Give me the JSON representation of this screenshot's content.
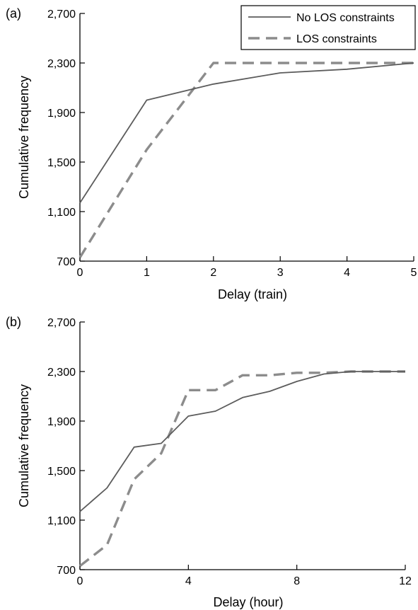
{
  "chart_data": [
    {
      "type": "line",
      "panel_label": "(a)",
      "xlabel": "Delay (train)",
      "ylabel": "Cumulative frequency",
      "xlim": [
        0,
        5
      ],
      "ylim": [
        700,
        2700
      ],
      "xticks": [
        0,
        1,
        2,
        3,
        4,
        5
      ],
      "xtick_labels": [
        "0",
        "1",
        "2",
        "3",
        "4",
        "5"
      ],
      "yticks": [
        700,
        1100,
        1500,
        1900,
        2300,
        2700
      ],
      "ytick_labels": [
        "700",
        "1,100",
        "1,500",
        "1,900",
        "2,300",
        "2,700"
      ],
      "grid": false,
      "legend": "top-right",
      "series": [
        {
          "name": "No LOS constraints",
          "style": "solid",
          "color": "#5c5c5c",
          "x": [
            0,
            1,
            2,
            3,
            4,
            5
          ],
          "y": [
            1170,
            2000,
            2130,
            2220,
            2250,
            2300
          ]
        },
        {
          "name": "LOS constraints",
          "style": "dashed",
          "color": "#8c8c8c",
          "x": [
            0,
            1,
            2,
            3,
            4,
            5
          ],
          "y": [
            730,
            1600,
            2300,
            2300,
            2300,
            2300
          ]
        }
      ]
    },
    {
      "type": "line",
      "panel_label": "(b)",
      "xlabel": "Delay (hour)",
      "ylabel": "Cumulative frequency",
      "xlim": [
        0,
        12
      ],
      "ylim": [
        700,
        2700
      ],
      "xticks": [
        0,
        4,
        8,
        12
      ],
      "xtick_labels": [
        "0",
        "4",
        "8",
        "12"
      ],
      "yticks": [
        700,
        1100,
        1500,
        1900,
        2300,
        2700
      ],
      "ytick_labels": [
        "700",
        "1,100",
        "1,500",
        "1,900",
        "2,300",
        "2,700"
      ],
      "grid": false,
      "series": [
        {
          "name": "No LOS constraints",
          "style": "solid",
          "color": "#5c5c5c",
          "x": [
            0,
            1,
            2,
            3,
            4,
            5,
            6,
            7,
            8,
            9,
            10,
            11,
            12
          ],
          "y": [
            1170,
            1360,
            1690,
            1720,
            1940,
            1980,
            2090,
            2140,
            2220,
            2280,
            2300,
            2300,
            2300
          ]
        },
        {
          "name": "LOS constraints",
          "style": "dashed",
          "color": "#8c8c8c",
          "x": [
            0,
            1,
            2,
            3,
            4,
            5,
            6,
            7,
            8,
            9,
            10,
            11,
            12
          ],
          "y": [
            730,
            900,
            1430,
            1640,
            2150,
            2150,
            2270,
            2270,
            2290,
            2290,
            2300,
            2300,
            2300
          ]
        }
      ]
    }
  ]
}
